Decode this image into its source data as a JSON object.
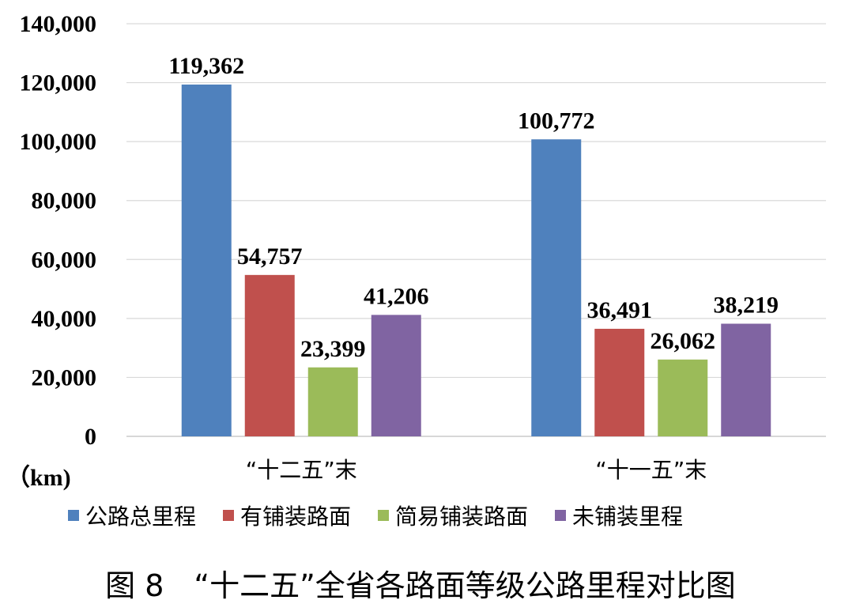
{
  "chart_data": {
    "type": "bar",
    "categories": [
      "“十二五”末",
      "“十一五”末"
    ],
    "series": [
      {
        "name": "公路总里程",
        "values": [
          119362,
          100772
        ],
        "labels": [
          "119,362",
          "100,772"
        ],
        "color": "#4f81bd"
      },
      {
        "name": "有铺装路面",
        "values": [
          54757,
          36491
        ],
        "labels": [
          "54,757",
          "36,491"
        ],
        "color": "#c0504d"
      },
      {
        "name": "简易铺装路面",
        "values": [
          23399,
          26062
        ],
        "labels": [
          "23,399",
          "26,062"
        ],
        "color": "#9bbb59"
      },
      {
        "name": "未铺装里程",
        "values": [
          41206,
          38219
        ],
        "labels": [
          "41,206",
          "38,219"
        ],
        "color": "#8064a2"
      }
    ],
    "y_ticks": [
      "0",
      "20,000",
      "40,000",
      "60,000",
      "80,000",
      "100,000",
      "120,000",
      "140,000"
    ],
    "ylim": [
      0,
      140000
    ],
    "ylabel": "（km)",
    "grid": true,
    "legend_position": "bottom"
  },
  "caption": "图 8　“十二五”全省各路面等级公路里程对比图"
}
